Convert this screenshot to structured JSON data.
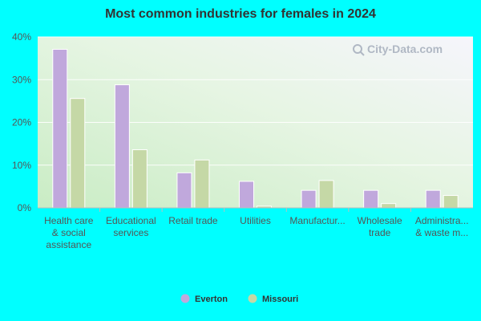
{
  "chart_data": {
    "type": "bar",
    "title": "Most common industries for females in 2024",
    "categories": [
      [
        "Health care",
        "& social",
        "assistance"
      ],
      [
        "Educational",
        "services"
      ],
      [
        "Retail trade"
      ],
      [
        "Utilities"
      ],
      [
        "Manufactur..."
      ],
      [
        "Wholesale",
        "trade"
      ],
      [
        "Administra...",
        "& waste m..."
      ]
    ],
    "series": [
      {
        "name": "Everton",
        "color": "#c0a8dc",
        "values": [
          37.1,
          28.8,
          8.2,
          6.2,
          4.1,
          4.1,
          4.1
        ]
      },
      {
        "name": "Missouri",
        "color": "#c5d8a6",
        "values": [
          25.6,
          13.6,
          11.2,
          0.4,
          6.4,
          1.0,
          2.9
        ]
      }
    ],
    "ylim": [
      0,
      40
    ],
    "yticks": [
      0,
      10,
      20,
      30,
      40
    ],
    "ytick_labels": [
      "0%",
      "10%",
      "20%",
      "30%",
      "40%"
    ],
    "xlabel": "",
    "ylabel": "",
    "grid": true,
    "legend": "bottom-center"
  },
  "watermark": "City-Data.com"
}
